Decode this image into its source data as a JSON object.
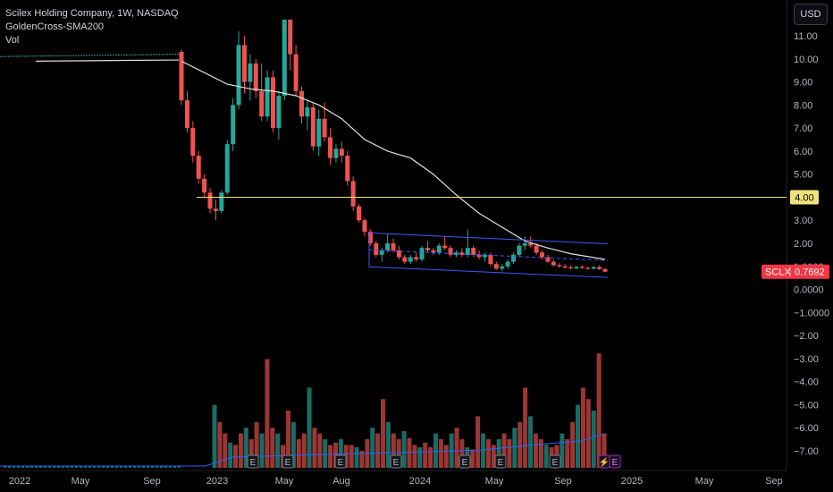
{
  "header": {
    "title": "Scilex Holding Company, 1W, NASDAQ",
    "indicator": "GoldenCross-SMA200",
    "volume_label": "Vol",
    "currency": "USD"
  },
  "price_axis": {
    "ticks": [
      "11.00",
      "10.00",
      "9.00",
      "8.00",
      "7.00",
      "6.00",
      "5.00",
      "4.00",
      "3.00",
      "2.00",
      "1.0000",
      "0.0000",
      "−1.0000",
      "−2.00",
      "−3.00",
      "−4.00",
      "−5.00",
      "−6.00",
      "−7.00"
    ]
  },
  "time_axis": {
    "labels": [
      "2022",
      "May",
      "Sep",
      "2023",
      "May",
      "Aug",
      "2024",
      "May",
      "Sep",
      "2025",
      "May",
      "Sep"
    ]
  },
  "horizontal_line": {
    "value": 4.0,
    "label": "4.00",
    "color": "#f0e37a"
  },
  "last_price": {
    "symbol": "SCLX",
    "value": "0.7692",
    "color": "#f23645"
  },
  "colors": {
    "up": "#26a69a",
    "down": "#ef5350",
    "sma": "#e0e0e0",
    "channel": "#3d5afe",
    "volume_ma": "#2962ff",
    "background": "#000000"
  },
  "event_markers": [
    "E",
    "E",
    "E",
    "E",
    "E",
    "E",
    "E",
    "⚡",
    "E"
  ],
  "chart_data": {
    "type": "candlestick",
    "ylim": [
      -7.9,
      11.7
    ],
    "x_labels": [
      "2022",
      "May",
      "Sep",
      "2023",
      "May",
      "Aug",
      "2024",
      "May",
      "Sep",
      "2025",
      "May",
      "Sep"
    ],
    "pre_listing_flat": {
      "from": "2022-01",
      "to": "2022-10",
      "value": 10.1
    },
    "ohlc_sample_weekly": [
      [
        10.3,
        10.4,
        8.0,
        8.2
      ],
      [
        8.2,
        8.6,
        6.8,
        7.0
      ],
      [
        7.0,
        7.3,
        5.5,
        5.8
      ],
      [
        5.8,
        6.0,
        4.6,
        4.8
      ],
      [
        4.8,
        5.0,
        4.0,
        4.2
      ],
      [
        4.2,
        4.4,
        3.3,
        3.5
      ],
      [
        3.5,
        3.9,
        3.0,
        3.4
      ],
      [
        3.4,
        4.3,
        3.3,
        4.2
      ],
      [
        4.2,
        6.5,
        4.1,
        6.3
      ],
      [
        6.3,
        8.3,
        6.0,
        8.0
      ],
      [
        8.0,
        11.2,
        7.8,
        10.6
      ],
      [
        10.6,
        11.0,
        8.5,
        9.0
      ],
      [
        9.0,
        10.2,
        8.2,
        9.8
      ],
      [
        9.8,
        10.0,
        8.3,
        8.6
      ],
      [
        8.6,
        9.8,
        7.3,
        7.5
      ],
      [
        7.5,
        9.5,
        7.3,
        9.2
      ],
      [
        9.2,
        9.5,
        6.8,
        7.0
      ],
      [
        7.0,
        8.6,
        6.5,
        8.4
      ],
      [
        8.4,
        13.0,
        8.2,
        12.0
      ],
      [
        12.0,
        12.5,
        9.5,
        10.2
      ],
      [
        10.2,
        10.6,
        8.4,
        8.6
      ],
      [
        8.6,
        8.8,
        7.2,
        7.5
      ],
      [
        7.5,
        8.2,
        6.9,
        7.9
      ],
      [
        7.9,
        8.1,
        6.0,
        6.2
      ],
      [
        6.2,
        7.8,
        5.8,
        7.4
      ],
      [
        7.4,
        8.1,
        6.4,
        6.6
      ],
      [
        6.6,
        7.0,
        5.4,
        5.7
      ],
      [
        5.7,
        6.3,
        5.5,
        6.1
      ],
      [
        6.1,
        6.4,
        5.5,
        5.8
      ],
      [
        5.8,
        6.0,
        4.5,
        4.7
      ],
      [
        4.7,
        4.9,
        3.4,
        3.6
      ],
      [
        3.6,
        3.7,
        2.9,
        3.0
      ],
      [
        3.0,
        3.1,
        2.3,
        2.5
      ],
      [
        2.5,
        2.6,
        1.9,
        2.0
      ],
      [
        2.0,
        2.1,
        1.4,
        1.5
      ],
      [
        1.5,
        1.8,
        1.2,
        1.7
      ],
      [
        1.7,
        2.4,
        1.6,
        2.0
      ],
      [
        2.0,
        2.2,
        1.6,
        1.7
      ],
      [
        1.7,
        1.9,
        1.3,
        1.4
      ],
      [
        1.4,
        1.5,
        1.1,
        1.2
      ],
      [
        1.2,
        1.5,
        1.1,
        1.4
      ],
      [
        1.4,
        1.6,
        1.2,
        1.3
      ],
      [
        1.3,
        1.9,
        1.2,
        1.8
      ],
      [
        1.8,
        2.1,
        1.6,
        1.7
      ],
      [
        1.7,
        1.8,
        1.5,
        1.6
      ],
      [
        1.6,
        2.0,
        1.5,
        1.9
      ],
      [
        1.9,
        2.3,
        1.7,
        1.8
      ],
      [
        1.8,
        1.9,
        1.4,
        1.5
      ],
      [
        1.5,
        1.7,
        1.4,
        1.6
      ],
      [
        1.6,
        1.8,
        1.4,
        1.5
      ],
      [
        1.5,
        2.6,
        1.4,
        1.8
      ],
      [
        1.8,
        1.9,
        1.4,
        1.5
      ],
      [
        1.5,
        1.7,
        1.3,
        1.4
      ],
      [
        1.4,
        1.6,
        1.2,
        1.5
      ],
      [
        1.5,
        1.6,
        1.0,
        1.1
      ],
      [
        1.1,
        1.2,
        0.85,
        0.9
      ],
      [
        0.9,
        1.1,
        0.8,
        1.0
      ],
      [
        1.0,
        1.3,
        0.9,
        1.2
      ],
      [
        1.2,
        1.6,
        1.1,
        1.5
      ],
      [
        1.5,
        2.0,
        1.4,
        1.9
      ],
      [
        1.9,
        2.3,
        1.7,
        2.0
      ],
      [
        2.0,
        2.3,
        1.8,
        1.9
      ],
      [
        1.9,
        2.0,
        1.5,
        1.6
      ],
      [
        1.6,
        1.7,
        1.3,
        1.4
      ],
      [
        1.4,
        1.5,
        1.15,
        1.2
      ],
      [
        1.2,
        1.3,
        1.0,
        1.05
      ],
      [
        1.05,
        1.15,
        0.95,
        1.0
      ],
      [
        1.0,
        1.1,
        0.9,
        0.95
      ],
      [
        0.95,
        1.05,
        0.88,
        0.92
      ],
      [
        0.92,
        1.02,
        0.86,
        0.98
      ],
      [
        0.98,
        1.05,
        0.9,
        0.93
      ],
      [
        0.93,
        1.0,
        0.85,
        0.9
      ],
      [
        0.9,
        1.02,
        0.86,
        0.97
      ],
      [
        0.97,
        1.05,
        0.85,
        0.88
      ],
      [
        0.88,
        0.95,
        0.74,
        0.77
      ]
    ],
    "volume_relative": [
      0.55,
      0.4,
      0.3,
      0.22,
      0.2,
      0.3,
      0.35,
      0.25,
      0.4,
      0.3,
      0.95,
      0.35,
      0.3,
      0.2,
      0.5,
      0.4,
      0.25,
      0.3,
      0.7,
      0.35,
      0.3,
      0.25,
      0.2,
      0.22,
      0.25,
      0.2,
      0.2,
      0.18,
      0.15,
      0.25,
      0.35,
      0.3,
      0.6,
      0.4,
      0.3,
      0.25,
      0.32,
      0.26,
      0.2,
      0.18,
      0.22,
      0.18,
      0.3,
      0.25,
      0.2,
      0.3,
      0.35,
      0.25,
      0.18,
      0.16,
      0.45,
      0.3,
      0.25,
      0.2,
      0.25,
      0.3,
      0.25,
      0.35,
      0.4,
      0.7,
      0.45,
      0.3,
      0.25,
      0.2,
      0.18,
      0.2,
      0.3,
      0.25,
      0.4,
      0.55,
      0.7,
      0.6,
      0.5,
      1.0,
      0.3
    ],
    "sma200": [
      [
        0,
        9.9
      ],
      [
        4,
        9.4
      ],
      [
        8,
        8.9
      ],
      [
        12,
        8.7
      ],
      [
        16,
        8.6
      ],
      [
        20,
        8.4
      ],
      [
        24,
        8.0
      ],
      [
        28,
        7.4
      ],
      [
        32,
        6.5
      ],
      [
        36,
        6.0
      ],
      [
        40,
        5.7
      ],
      [
        44,
        5.0
      ],
      [
        48,
        4.1
      ],
      [
        52,
        3.3
      ],
      [
        56,
        2.7
      ],
      [
        60,
        2.1
      ],
      [
        64,
        1.8
      ],
      [
        68,
        1.55
      ],
      [
        74,
        1.3
      ]
    ]
  }
}
